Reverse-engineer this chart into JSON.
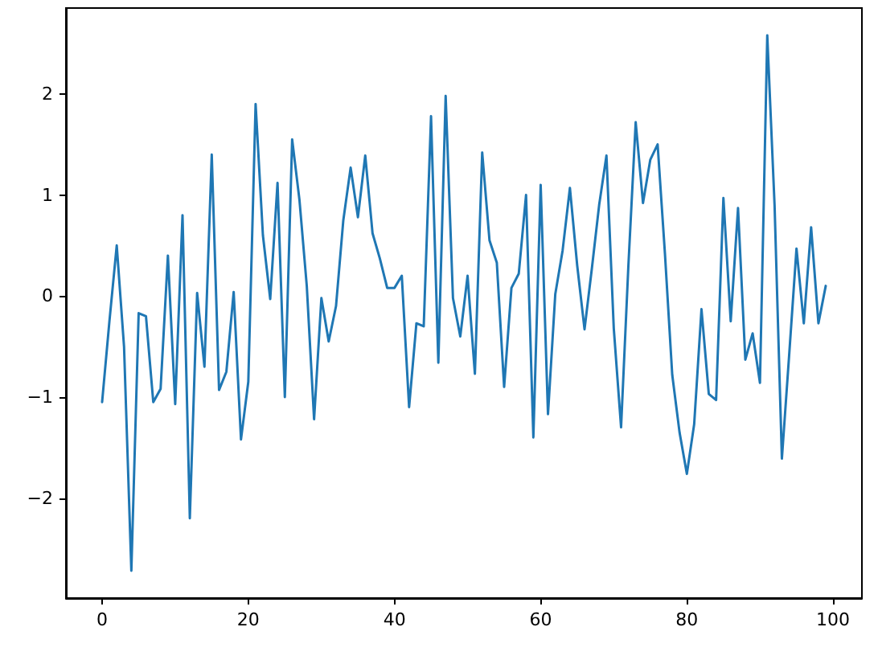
{
  "chart_data": {
    "type": "line",
    "x": [
      0,
      1,
      2,
      3,
      4,
      5,
      6,
      7,
      8,
      9,
      10,
      11,
      12,
      13,
      14,
      15,
      16,
      17,
      18,
      19,
      20,
      21,
      22,
      23,
      24,
      25,
      26,
      27,
      28,
      29,
      30,
      31,
      32,
      33,
      34,
      35,
      36,
      37,
      38,
      39,
      40,
      41,
      42,
      43,
      44,
      45,
      46,
      47,
      48,
      49,
      50,
      51,
      52,
      53,
      54,
      55,
      56,
      57,
      58,
      59,
      60,
      61,
      62,
      63,
      64,
      65,
      66,
      67,
      68,
      69,
      70,
      71,
      72,
      73,
      74,
      75,
      76,
      77,
      78,
      79,
      80,
      81,
      82,
      83,
      84,
      85,
      86,
      87,
      88,
      89,
      90,
      91,
      92,
      93,
      94,
      95,
      96,
      97,
      98,
      99
    ],
    "series": [
      {
        "color": "#1f77b4",
        "values": [
          -1.05,
          -0.25,
          0.5,
          -0.5,
          -2.72,
          -0.17,
          -0.2,
          -1.05,
          -0.92,
          0.4,
          -1.07,
          0.8,
          -2.2,
          0.03,
          -0.7,
          1.4,
          -0.93,
          -0.75,
          0.04,
          -1.42,
          -0.85,
          1.9,
          0.6,
          -0.03,
          1.12,
          -1.0,
          1.55,
          0.95,
          0.1,
          -1.22,
          -0.02,
          -0.45,
          -0.1,
          0.75,
          1.27,
          0.78,
          1.39,
          0.62,
          0.37,
          0.08,
          0.08,
          0.2,
          -1.1,
          -0.27,
          -0.3,
          1.78,
          -0.66,
          1.98,
          -0.02,
          -0.4,
          0.2,
          -0.77,
          1.42,
          0.55,
          0.33,
          -0.9,
          0.08,
          0.22,
          1.0,
          -1.4,
          1.1,
          -1.17,
          0.02,
          0.45,
          1.07,
          0.3,
          -0.33,
          0.27,
          0.9,
          1.39,
          -0.32,
          -1.3,
          0.3,
          1.72,
          0.92,
          1.35,
          1.5,
          0.42,
          -0.78,
          -1.35,
          -1.76,
          -1.27,
          -0.13,
          -0.97,
          -1.03,
          0.97,
          -0.25,
          0.87,
          -0.63,
          -0.37,
          -0.86,
          2.58,
          0.9,
          -1.61,
          -0.58,
          0.47,
          -0.27,
          0.68,
          -0.27,
          0.1
        ]
      }
    ],
    "xlim": [
      -4.95,
      103.95
    ],
    "xticks": [
      0,
      20,
      40,
      60,
      80,
      100
    ],
    "ylim": [
      -2.99,
      2.85
    ],
    "yticks": [
      {
        "value": -2,
        "label": "−2"
      },
      {
        "value": -1,
        "label": "−1"
      },
      0,
      1,
      2
    ],
    "grid": false,
    "marker": "none",
    "line_style": "solid"
  }
}
